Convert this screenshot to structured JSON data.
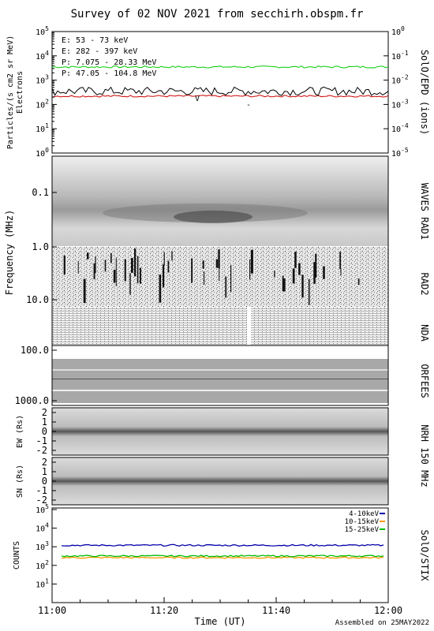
{
  "title": "Survey of 02 NOV 2021 from secchirh.obspm.fr",
  "footer": "Assembled on 25MAY2022",
  "colors": {
    "e53": "#00cc00",
    "e282": "#cc0000",
    "p7": "#000000",
    "p47": "#0000cc",
    "stix1": "#0000aa",
    "stix2": "#ff9900",
    "stix3": "#00bb00"
  },
  "chart_data": [
    {
      "type": "line",
      "panel": "SolO/EPD",
      "ylabel_left": "Particles/(s cm2 sr MeV)",
      "ylabel_left2": "Electrons",
      "ylabel_right": "SolO/EPD (ions)",
      "yscale": "log",
      "ylim": [
        1,
        100000
      ],
      "ylim_right": [
        1e-05,
        1
      ],
      "yticks": [
        "10^0",
        "10^1",
        "10^2",
        "10^3",
        "10^4",
        "10^5"
      ],
      "yticks_right": [
        "10^-5",
        "10^-4",
        "10^-3",
        "10^-2",
        "10^-1",
        "10^0"
      ],
      "x": [
        "11:00",
        "12:00"
      ],
      "series": [
        {
          "name": "E: 53 - 73 keV",
          "level": 3500,
          "color": "#00cc00"
        },
        {
          "name": "E: 282 - 397 keV",
          "level": 220,
          "color": "#cc0000"
        },
        {
          "name": "P: 7.075 - 28.33 MeV",
          "level": 350,
          "color": "#000000"
        },
        {
          "name": "P: 47.05 - 104.8 MeV",
          "level": 150,
          "color": "#0000cc"
        }
      ]
    },
    {
      "type": "heatmap",
      "panel": "Radio spectrogram",
      "ylabel": "Frequency (MHz)",
      "yscale": "log",
      "yticks": [
        "0.1",
        "1.0",
        "10.0",
        "100.0",
        "1000.0"
      ],
      "labels_right": [
        "WAVES RAD1",
        "RAD2",
        "NDA",
        "ORFEES"
      ]
    },
    {
      "type": "heatmap",
      "panel": "NRH 150 MHz",
      "labels_right": [
        "NRH 150 MHz"
      ],
      "subpanels": [
        {
          "ylabel": "EW (Rs)",
          "yticks": [
            "2",
            "1",
            "0",
            "-1",
            "-2"
          ]
        },
        {
          "ylabel": "SN (Rs)",
          "yticks": [
            "2",
            "1",
            "0",
            "-1",
            "-2"
          ]
        }
      ]
    },
    {
      "type": "line",
      "panel": "SolO/STIX",
      "ylabel": "COUNTS",
      "ylabel_right": "SolO/STIX",
      "yscale": "log",
      "ylim": [
        1,
        100000
      ],
      "yticks": [
        "10^1",
        "10^2",
        "10^3",
        "10^4",
        "10^5"
      ],
      "series": [
        {
          "name": "4-10keV",
          "level": 1200,
          "color": "#0000aa"
        },
        {
          "name": "10-15keV",
          "level": 260,
          "color": "#ff9900"
        },
        {
          "name": "15-25keV",
          "level": 320,
          "color": "#00bb00"
        }
      ]
    }
  ],
  "xaxis": {
    "label": "Time (UT)",
    "ticks": [
      "11:00",
      "11:20",
      "11:40",
      "12:00"
    ]
  }
}
